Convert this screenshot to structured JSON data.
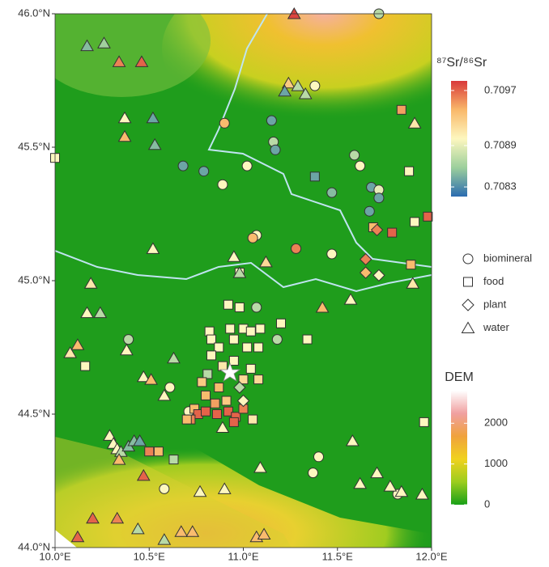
{
  "chart_data": {
    "type": "scatter",
    "xlim": [
      10,
      12
    ],
    "ylim": [
      44,
      46
    ],
    "xticks": [
      {
        "value": 10,
        "label": "10.0°E"
      },
      {
        "value": 10.5,
        "label": "10.5°E"
      },
      {
        "value": 11,
        "label": "11.0°E"
      },
      {
        "value": 11.5,
        "label": "11.5°E"
      },
      {
        "value": 12,
        "label": "12.0°E"
      }
    ],
    "yticks": [
      {
        "value": 44,
        "label": "44.0°N"
      },
      {
        "value": 44.5,
        "label": "44.5°N"
      },
      {
        "value": 45,
        "label": "45.0°N"
      },
      {
        "value": 45.5,
        "label": "45.5°N"
      },
      {
        "value": 46,
        "label": "46.0°N"
      }
    ],
    "colorbar": {
      "title": "⁸⁷Sr/⁸⁶Sr",
      "lim": [
        0.70816,
        0.70984
      ],
      "ticks": [
        0.7083,
        0.7089,
        0.7097
      ],
      "colors": [
        "#2b6cb0",
        "#9ccf9c",
        "#fdf7bf",
        "#f9b86a",
        "#d9393a"
      ]
    },
    "dem": {
      "title": "DEM",
      "lim": [
        0,
        2800
      ],
      "ticks": [
        0,
        1000,
        2000
      ],
      "colors": [
        "#18a018",
        "#9ccd1e",
        "#f0d21e",
        "#f0a23c",
        "#f0a0a0",
        "#ffffff"
      ]
    },
    "series": [
      {
        "name": "biomineral",
        "shape": "circle",
        "x": [
          10.9,
          11.15,
          11.16,
          11.17,
          10.68,
          10.79,
          10.89,
          11.02,
          11.38,
          11.47,
          11.59,
          11.62,
          11.68,
          11.72,
          11.72,
          11.67,
          11.07,
          11.05,
          11.28,
          11.47,
          11.07,
          10.71,
          10.61,
          11.18,
          10.58,
          11.4,
          11.37,
          11.82,
          11.72,
          10.39
        ],
        "y": [
          45.59,
          45.6,
          45.52,
          45.49,
          45.43,
          45.41,
          45.36,
          45.43,
          45.73,
          45.33,
          45.47,
          45.43,
          45.35,
          45.34,
          45.31,
          45.26,
          45.17,
          45.16,
          45.12,
          45.1,
          44.9,
          44.51,
          44.6,
          44.78,
          44.22,
          44.34,
          44.28,
          44.2,
          46.0,
          44.78
        ],
        "values": [
          0.7094,
          0.7084,
          0.7087,
          0.7084,
          0.7084,
          0.7084,
          0.709,
          0.709,
          0.709,
          0.7085,
          0.7087,
          0.709,
          0.7084,
          0.7089,
          0.7084,
          0.7084,
          0.709,
          0.7094,
          0.7096,
          0.709,
          0.7087,
          0.709,
          0.709,
          0.7087,
          0.709,
          0.709,
          0.709,
          0.709,
          0.7087,
          0.7087
        ]
      },
      {
        "name": "food",
        "shape": "square",
        "x": [
          10.0,
          11.38,
          11.88,
          11.84,
          11.69,
          11.79,
          11.91,
          11.98,
          11.89,
          10.98,
          11.2,
          11.34,
          11.96,
          10.63,
          10.55,
          10.5,
          10.16,
          10.92,
          10.98,
          10.93,
          11.0,
          11.04,
          11.09,
          10.82,
          10.83,
          10.87,
          10.95,
          11.02,
          11.08,
          10.83,
          10.95,
          11.04,
          10.89,
          10.81,
          10.78,
          10.87,
          11.0,
          11.08,
          10.8,
          10.91,
          10.85,
          10.74,
          10.76,
          10.8,
          10.86,
          10.92,
          10.96,
          11.0,
          10.95,
          11.05,
          10.72,
          10.7
        ],
        "y": [
          45.46,
          45.39,
          45.41,
          45.64,
          45.2,
          45.18,
          45.22,
          45.24,
          45.06,
          45.03,
          44.84,
          44.78,
          44.47,
          44.33,
          44.36,
          44.36,
          44.68,
          44.91,
          44.9,
          44.82,
          44.82,
          44.81,
          44.82,
          44.81,
          44.78,
          44.75,
          44.78,
          44.75,
          44.75,
          44.72,
          44.7,
          44.67,
          44.68,
          44.65,
          44.62,
          44.6,
          44.63,
          44.63,
          44.57,
          44.55,
          44.54,
          44.52,
          44.5,
          44.51,
          44.5,
          44.51,
          44.49,
          44.52,
          44.47,
          44.48,
          44.48,
          44.48
        ],
        "values": [
          0.709,
          0.7084,
          0.709,
          0.7095,
          0.7094,
          0.7097,
          0.709,
          0.7097,
          0.7094,
          0.709,
          0.709,
          0.709,
          0.709,
          0.7087,
          0.7094,
          0.7096,
          0.709,
          0.709,
          0.709,
          0.709,
          0.709,
          0.709,
          0.709,
          0.709,
          0.709,
          0.709,
          0.709,
          0.709,
          0.709,
          0.709,
          0.709,
          0.709,
          0.7091,
          0.7087,
          0.7093,
          0.7094,
          0.7092,
          0.7092,
          0.7094,
          0.7093,
          0.7095,
          0.7094,
          0.7097,
          0.7097,
          0.7097,
          0.7097,
          0.7097,
          0.7096,
          0.7097,
          0.7091,
          0.7096,
          0.7094
        ]
      },
      {
        "name": "plant",
        "shape": "diamond",
        "x": [
          11.71,
          11.65,
          11.65,
          11.72,
          11.0,
          10.98
        ],
        "y": [
          45.19,
          45.08,
          45.03,
          45.02,
          44.55,
          44.6
        ],
        "values": [
          0.7096,
          0.7096,
          0.7094,
          0.709,
          0.709,
          0.7087
        ]
      },
      {
        "name": "water",
        "shape": "triangle",
        "x": [
          10.17,
          10.26,
          10.34,
          10.46,
          10.37,
          10.52,
          10.37,
          10.53,
          11.27,
          11.24,
          11.29,
          11.22,
          11.33,
          11.91,
          10.52,
          10.95,
          10.98,
          11.12,
          10.19,
          11.57,
          11.42,
          11.9,
          10.17,
          10.24,
          10.08,
          10.12,
          10.38,
          10.47,
          10.51,
          10.63,
          10.58,
          10.29,
          10.31,
          10.33,
          10.35,
          10.39,
          10.42,
          10.45,
          10.34,
          10.47,
          10.77,
          10.9,
          11.09,
          11.58,
          11.62,
          11.71,
          11.78,
          11.84,
          11.95,
          10.2,
          10.33,
          10.44,
          10.58,
          10.67,
          10.73,
          11.07,
          11.11,
          10.12,
          10.89
        ],
        "y": [
          45.88,
          45.89,
          45.82,
          45.82,
          45.61,
          45.61,
          45.54,
          45.51,
          46.0,
          45.74,
          45.73,
          45.71,
          45.7,
          45.59,
          45.12,
          45.09,
          45.03,
          45.07,
          44.99,
          44.93,
          44.9,
          44.99,
          44.88,
          44.88,
          44.73,
          44.76,
          44.74,
          44.64,
          44.63,
          44.71,
          44.57,
          44.42,
          44.39,
          44.37,
          44.36,
          44.38,
          44.4,
          44.4,
          44.33,
          44.27,
          44.21,
          44.22,
          44.3,
          44.4,
          44.24,
          44.28,
          44.23,
          44.21,
          44.2,
          44.11,
          44.11,
          44.07,
          44.03,
          44.06,
          44.06,
          44.04,
          44.05,
          44.04,
          44.45
        ],
        "values": [
          0.7085,
          0.7086,
          0.7096,
          0.7097,
          0.709,
          0.7084,
          0.7094,
          0.7085,
          0.7098,
          0.7093,
          0.7087,
          0.7084,
          0.7087,
          0.7091,
          0.709,
          0.709,
          0.7087,
          0.7092,
          0.7091,
          0.709,
          0.7094,
          0.7091,
          0.709,
          0.7087,
          0.7091,
          0.7094,
          0.709,
          0.709,
          0.7094,
          0.7087,
          0.709,
          0.709,
          0.709,
          0.709,
          0.7087,
          0.7085,
          0.7085,
          0.7084,
          0.7094,
          0.7097,
          0.709,
          0.709,
          0.709,
          0.709,
          0.709,
          0.709,
          0.709,
          0.709,
          0.709,
          0.7097,
          0.7096,
          0.7087,
          0.7087,
          0.7094,
          0.7094,
          0.7094,
          0.7094,
          0.7097,
          0.709
        ]
      }
    ]
  }
}
